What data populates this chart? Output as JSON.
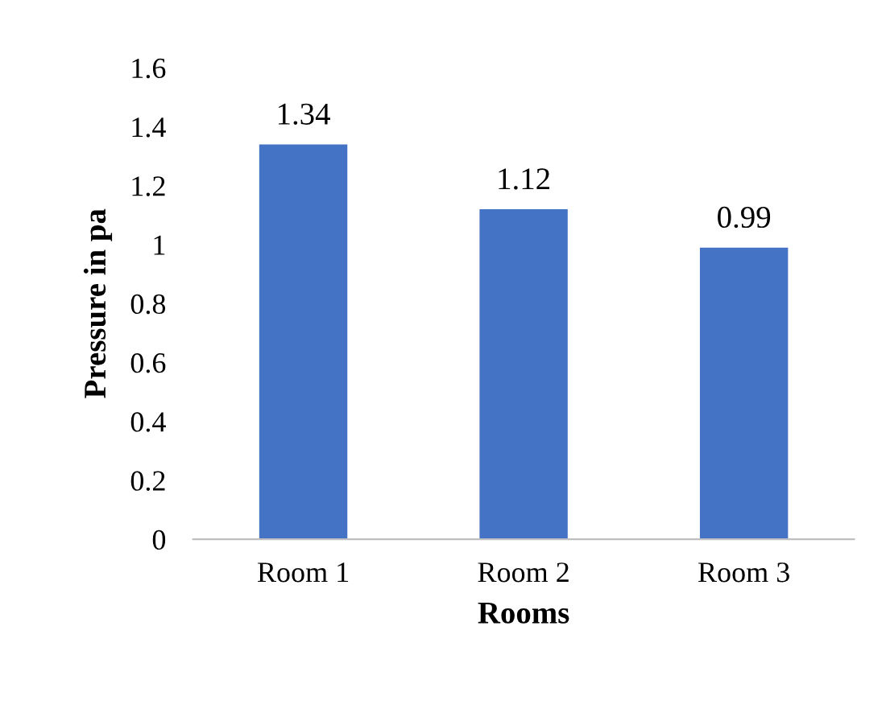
{
  "chart_data": {
    "type": "bar",
    "xlabel": "Rooms",
    "ylabel": "Pressure in pa",
    "categories": [
      "Room 1",
      "Room 2",
      "Room 3"
    ],
    "values": [
      1.34,
      1.12,
      0.99
    ],
    "color": "#4472c4",
    "ylim": [
      0,
      1.6
    ],
    "yticks": [
      0,
      0.2,
      0.4,
      0.6,
      0.8,
      1,
      1.2,
      1.4,
      1.6
    ],
    "data_labels": true,
    "grid": false
  }
}
